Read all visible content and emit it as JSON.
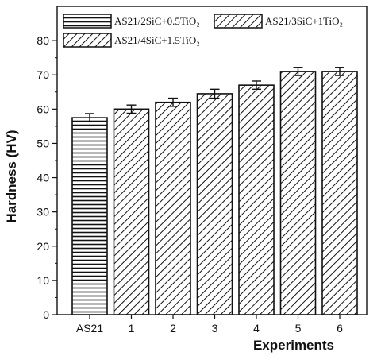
{
  "chart_data": {
    "type": "bar",
    "xlabel": "Experiments",
    "ylabel": "Hardness (HV)",
    "ylim": [
      0,
      90
    ],
    "yticks": [
      0,
      10,
      20,
      30,
      40,
      50,
      60,
      70,
      80
    ],
    "categories": [
      "AS21",
      "1",
      "2",
      "3",
      "4",
      "5",
      "6"
    ],
    "values": [
      57.5,
      60,
      62,
      64.5,
      67,
      71,
      71
    ],
    "errors": [
      1.2,
      1.2,
      1.2,
      1.3,
      1.2,
      1.2,
      1.2
    ],
    "patterns": [
      "horizontal",
      "diagonal",
      "diagonal",
      "diagonal",
      "diagonal",
      "diagonal",
      "diagonal"
    ],
    "legend": [
      {
        "label": "AS21/2SiC+0.5TiO₂",
        "pattern": "horizontal"
      },
      {
        "label": "AS21/3SiC+1TiO₂",
        "pattern": "diagonal"
      },
      {
        "label": "AS21/4SiC+1.5TiO₂",
        "pattern": "diagonal"
      }
    ],
    "legend_position": "top-left",
    "grid": false,
    "colors": {
      "stroke": "#111111",
      "fill": "#ffffff"
    }
  }
}
